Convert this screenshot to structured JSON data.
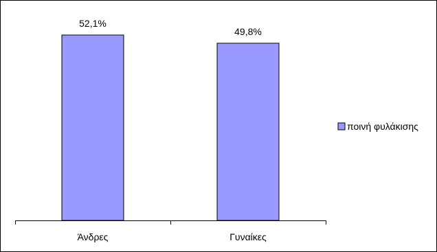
{
  "chart_data": {
    "type": "bar",
    "categories": [
      "Άνδρες",
      "Γυναίκες"
    ],
    "series": [
      {
        "name": "ποινή φυλάκισης",
        "values": [
          52.1,
          49.8
        ],
        "color": "#9999ff"
      }
    ],
    "data_labels": [
      "52,1%",
      "49,8%"
    ],
    "value_unit": "%",
    "ylim": [
      0,
      55
    ],
    "y_axis_visible": false,
    "grid": false,
    "legend": {
      "position": "right",
      "entries": [
        "ποινή φυλάκισης"
      ]
    }
  }
}
